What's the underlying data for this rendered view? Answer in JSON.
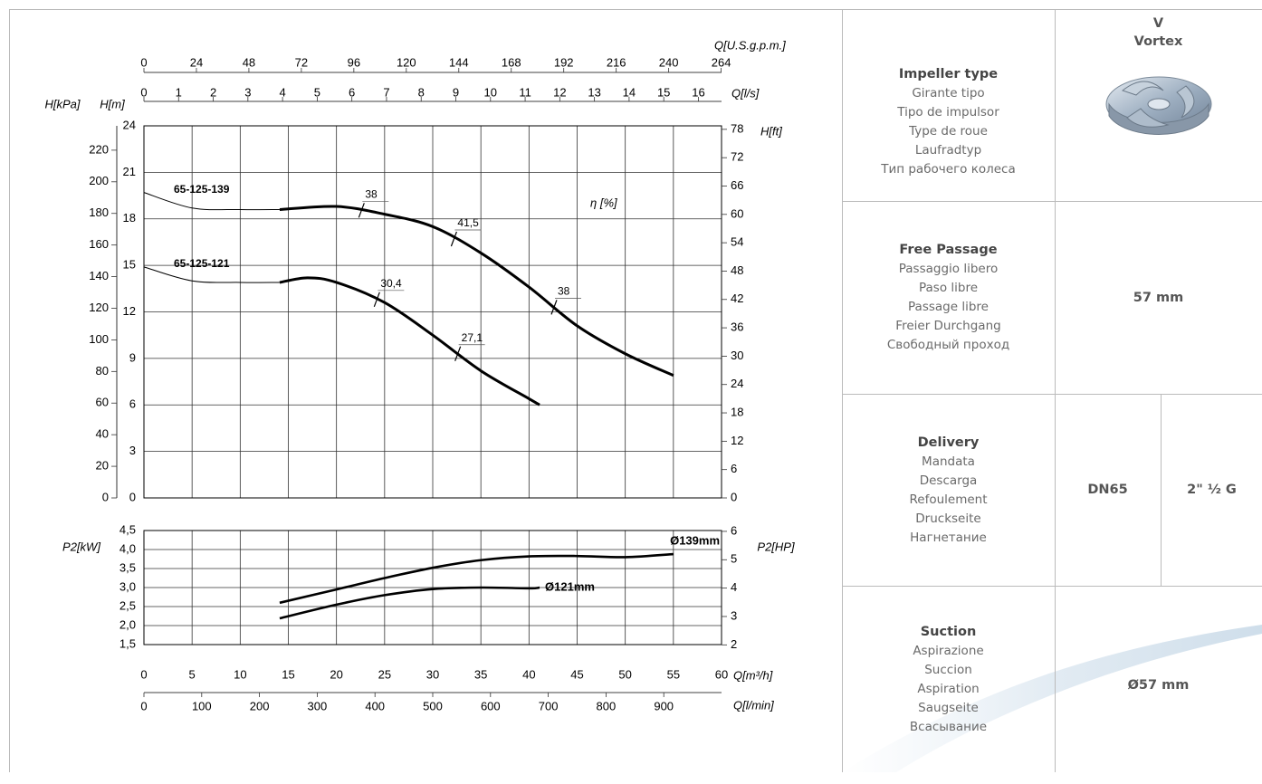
{
  "chart_data": [
    {
      "type": "line",
      "xlim": [
        0,
        60
      ],
      "xticks": [
        0,
        5,
        10,
        15,
        20,
        25,
        30,
        35,
        40,
        45,
        50,
        55,
        60
      ],
      "x2label": "Q[l/s]",
      "x2lim": [
        0,
        16.667
      ],
      "x2ticks": [
        0,
        1,
        2,
        3,
        4,
        5,
        6,
        7,
        8,
        9,
        10,
        11,
        12,
        13,
        14,
        15,
        16
      ],
      "x3label": "Q[U.S.g.p.m.]",
      "x3lim": [
        0,
        264.17
      ],
      "x3ticks": [
        0,
        24,
        48,
        72,
        96,
        120,
        144,
        168,
        192,
        216,
        240,
        264
      ],
      "ylabel": "H[m]",
      "ylim": [
        0,
        24
      ],
      "yticks": [
        0,
        3,
        6,
        9,
        12,
        15,
        18,
        21,
        24
      ],
      "y2label": "H[ft]",
      "y2lim": [
        0,
        78.74
      ],
      "y2ticks": [
        0,
        6,
        12,
        18,
        24,
        30,
        36,
        42,
        48,
        54,
        60,
        66,
        72,
        78
      ],
      "y3label": "H[kPa]",
      "y3lim": [
        0,
        235.4
      ],
      "y3ticks": [
        0,
        20,
        40,
        60,
        80,
        100,
        120,
        140,
        160,
        180,
        200,
        220
      ],
      "grid": true,
      "series": [
        {
          "name": "65-125-139",
          "color": "#000000",
          "operating_range": [
            14.1,
            55
          ],
          "x": [
            0,
            5,
            10,
            14.1,
            20,
            25,
            30,
            35,
            40,
            45,
            50,
            55
          ],
          "values": [
            19.7,
            18.7,
            18.6,
            18.6,
            18.8,
            18.3,
            17.5,
            15.8,
            13.6,
            11.1,
            9.3,
            7.9
          ]
        },
        {
          "name": "65-125-121",
          "color": "#000000",
          "operating_range": [
            14.1,
            41.1
          ],
          "x": [
            0,
            5,
            10,
            14.1,
            17,
            20,
            25,
            30,
            35,
            40,
            41.1
          ],
          "values": [
            14.9,
            14.0,
            13.9,
            13.9,
            14.2,
            13.9,
            12.6,
            10.5,
            8.2,
            6.4,
            6.0
          ]
        }
      ],
      "efficiency_label": "η [%]",
      "efficiency": [
        {
          "value": 38,
          "x": 22.6,
          "y": 18.55
        },
        {
          "value": 41.5,
          "label": "41,5",
          "x": 32.2,
          "y": 16.7
        },
        {
          "value": 38,
          "x": 42.6,
          "y": 12.3
        },
        {
          "value": 30.4,
          "label": "30,4",
          "x": 24.2,
          "y": 12.8
        },
        {
          "value": 27.1,
          "label": "27,1",
          "x": 32.6,
          "y": 9.3
        }
      ]
    },
    {
      "type": "line",
      "xlabel": "Q[m³/h]",
      "xlim": [
        0,
        60
      ],
      "xticks": [
        0,
        5,
        10,
        15,
        20,
        25,
        30,
        35,
        40,
        45,
        50,
        55,
        60
      ],
      "x2label": "Q[l/min]",
      "x2lim": [
        0,
        1000
      ],
      "x2ticks": [
        0,
        100,
        200,
        300,
        400,
        500,
        600,
        700,
        800,
        900
      ],
      "ylabel": "P2[kW]",
      "ylim": [
        1.5,
        4.5
      ],
      "yticks": [
        {
          "value": 1.5,
          "label": "1,5"
        },
        {
          "value": 2.0,
          "label": "2,0"
        },
        {
          "value": 2.5,
          "label": "2,5"
        },
        {
          "value": 3.0,
          "label": "3,0"
        },
        {
          "value": 3.5,
          "label": "3,5"
        },
        {
          "value": 4.0,
          "label": "4,0"
        },
        {
          "value": 4.5,
          "label": "4,5"
        }
      ],
      "y2label": "P2[HP]",
      "y2lim": [
        2.01,
        6.03
      ],
      "y2ticks": [
        2,
        3,
        4,
        5,
        6
      ],
      "grid": true,
      "series": [
        {
          "name": "Ø139mm",
          "color": "#000000",
          "x": [
            14.1,
            20,
            25,
            30,
            35,
            40,
            45,
            50,
            55
          ],
          "values": [
            2.6,
            2.95,
            3.25,
            3.52,
            3.72,
            3.82,
            3.83,
            3.8,
            3.88
          ]
        },
        {
          "name": "Ø121mm",
          "color": "#000000",
          "x": [
            14.1,
            20,
            25,
            30,
            35,
            40,
            41.1
          ],
          "values": [
            2.19,
            2.55,
            2.8,
            2.96,
            3.0,
            2.98,
            3.0
          ]
        }
      ]
    }
  ],
  "table": {
    "rows": [
      {
        "labels": [
          "Impeller type",
          "Girante tipo",
          "Tipo de impulsor",
          "Type de roue",
          "Laufradtyp",
          "Тип рабочего колеса"
        ],
        "values": [
          "V",
          "Vortex"
        ]
      },
      {
        "labels": [
          "Free Passage",
          "Passaggio libero",
          "Paso libre",
          "Passage libre",
          "Freier Durchgang",
          "Свободный проход"
        ],
        "values": [
          "57 mm"
        ]
      },
      {
        "labels": [
          "Delivery",
          "Mandata",
          "Descarga",
          "Refoulement",
          "Druckseite",
          "Нагнетание"
        ],
        "values": [
          "DN65",
          "2\" ½ G"
        ]
      },
      {
        "labels": [
          "Suction",
          "Aspirazione",
          "Succion",
          "Aspiration",
          "Saugseite",
          "Всасывание"
        ],
        "values": [
          "Ø57 mm"
        ]
      }
    ]
  }
}
